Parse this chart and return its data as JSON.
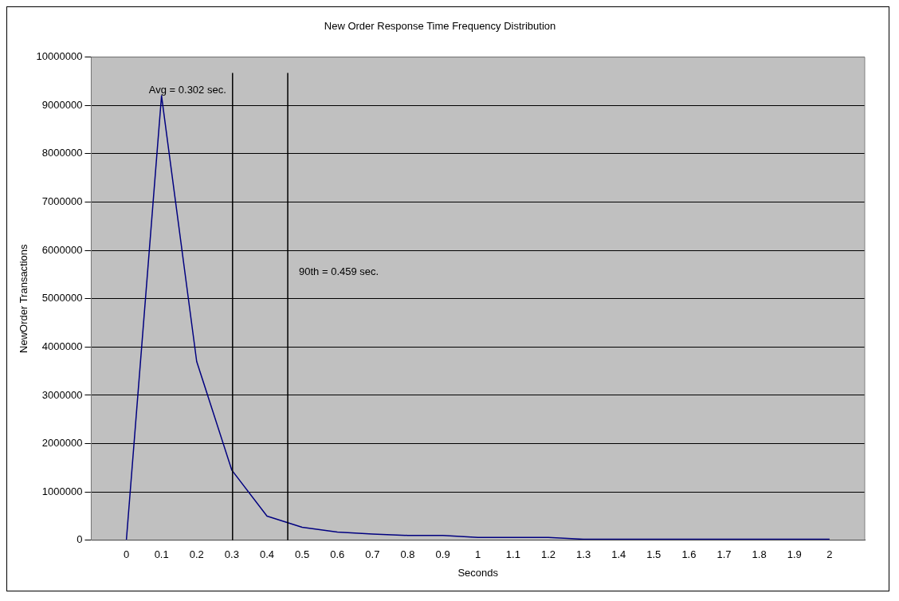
{
  "chart_data": {
    "type": "line",
    "title": "New Order Response Time Frequency Distribution",
    "xlabel": "Seconds",
    "ylabel": "NewOrder Transactions",
    "x": [
      0,
      0.1,
      0.2,
      0.3,
      0.4,
      0.5,
      0.6,
      0.7,
      0.8,
      0.9,
      1,
      1.1,
      1.2,
      1.3,
      1.4,
      1.5,
      1.6,
      1.7,
      1.8,
      1.9,
      2
    ],
    "series": [
      {
        "color": "#000080",
        "values": [
          0,
          9200000,
          3700000,
          1450000,
          500000,
          270000,
          170000,
          130000,
          100000,
          100000,
          60000,
          60000,
          60000,
          20000,
          20000,
          20000,
          20000,
          20000,
          20000,
          20000,
          20000
        ]
      }
    ],
    "xlim": [
      -0.1,
      2.1
    ],
    "xticks": [
      0,
      0.1,
      0.2,
      0.3,
      0.4,
      0.5,
      0.6,
      0.7,
      0.8,
      0.9,
      1,
      1.1,
      1.2,
      1.3,
      1.4,
      1.5,
      1.6,
      1.7,
      1.8,
      1.9,
      2
    ],
    "ylim": [
      0,
      10000000
    ],
    "yticks": [
      0,
      1000000,
      2000000,
      3000000,
      4000000,
      5000000,
      6000000,
      7000000,
      8000000,
      9000000,
      10000000
    ],
    "grid": "y",
    "legend": false,
    "marker": "none",
    "line_style": "solid",
    "ref_lines": [
      {
        "axis": "x",
        "value": 0.302,
        "label": "Avg = 0.302 sec.",
        "color": "#000000"
      },
      {
        "axis": "x",
        "value": 0.459,
        "label": "90th = 0.459 sec.",
        "color": "#000000"
      }
    ]
  }
}
